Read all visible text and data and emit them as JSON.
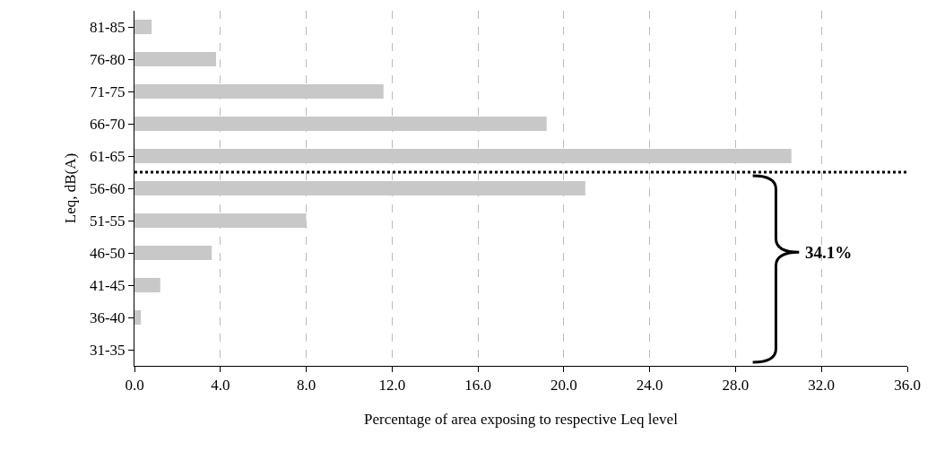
{
  "chart_data": {
    "type": "bar",
    "orientation": "horizontal",
    "xlabel": "Percentage of area exposing to respective Leq level",
    "ylabel": "Leq, dB(A)",
    "categories": [
      "81-85",
      "76-80",
      "71-75",
      "66-70",
      "61-65",
      "56-60",
      "51-55",
      "46-50",
      "41-45",
      "36-40",
      "31-35"
    ],
    "values": [
      0.8,
      3.8,
      11.6,
      19.2,
      30.6,
      21.0,
      8.0,
      3.6,
      1.2,
      0.3,
      0
    ],
    "color": "#c8c8c8",
    "xlim": [
      0,
      36
    ],
    "xticks": [
      {
        "value": 0,
        "label": "0.0"
      },
      {
        "value": 4,
        "label": "4.0"
      },
      {
        "value": 8,
        "label": "8.0"
      },
      {
        "value": 12,
        "label": "12.0"
      },
      {
        "value": 16,
        "label": "16.0"
      },
      {
        "value": 20,
        "label": "20.0"
      },
      {
        "value": 24,
        "label": "24.0"
      },
      {
        "value": 28,
        "label": "28.0"
      },
      {
        "value": 32,
        "label": "32.0"
      },
      {
        "value": 36,
        "label": "36.0"
      }
    ],
    "grid": "x",
    "ref_lines": [
      {
        "axis": "y",
        "value": "56-60",
        "line_style": "dotted",
        "color": "#000000"
      }
    ],
    "annotations": [
      "34.1%"
    ]
  }
}
